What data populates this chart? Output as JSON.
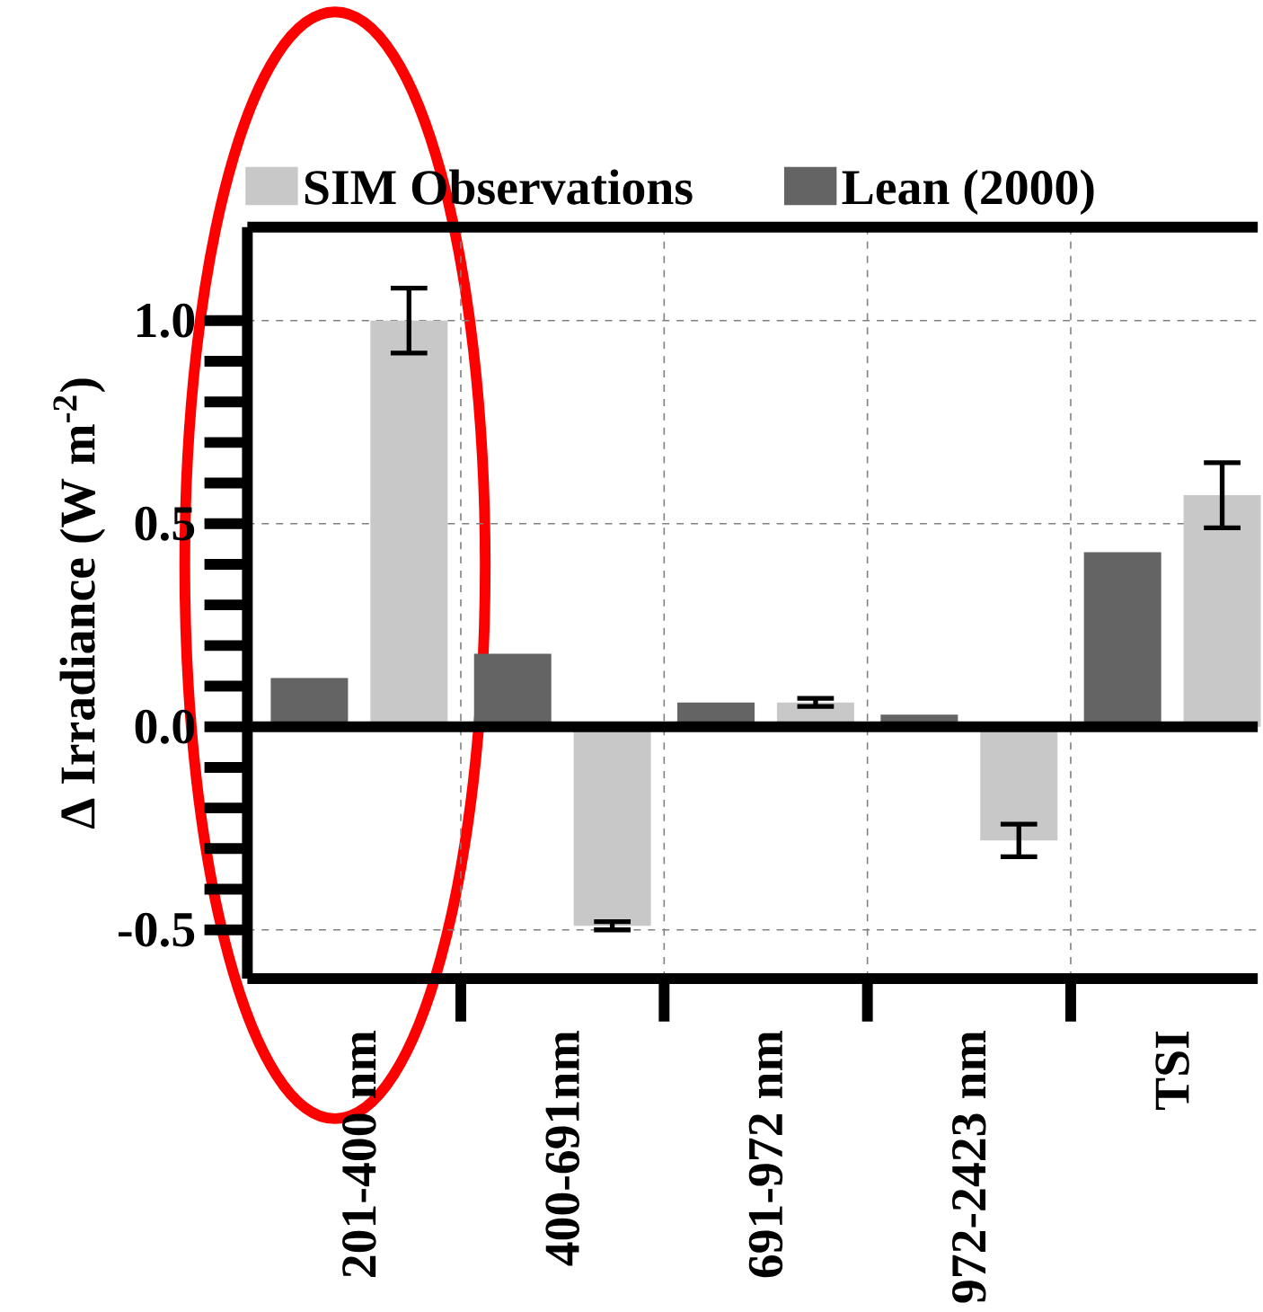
{
  "chart_data": {
    "type": "bar",
    "ylabel": "Δ Irradiance (W m$^{-2}$)",
    "categories": [
      "201-400 nm",
      "400-691nm",
      "691-972 nm",
      "972-2423 nm",
      "TSI"
    ],
    "series": [
      {
        "name": "Lean (2000)",
        "color": "#646464",
        "values": [
          0.12,
          0.18,
          0.06,
          0.03,
          0.43
        ]
      },
      {
        "name": "SIM Observations",
        "color": "#c8c8c8",
        "values": [
          1.0,
          -0.49,
          0.06,
          -0.28,
          0.57
        ],
        "errors": [
          0.08,
          0.01,
          0.01,
          0.04,
          0.08
        ]
      }
    ],
    "ylim": [
      -0.62,
      1.23
    ],
    "yticks": [
      {
        "value": -0.5,
        "label": "-0.5"
      },
      {
        "value": 0,
        "label": "0.0"
      },
      {
        "value": 0.5,
        "label": "0.5"
      },
      {
        "value": 1,
        "label": "1.0"
      }
    ],
    "grid": true,
    "legend": "top"
  }
}
